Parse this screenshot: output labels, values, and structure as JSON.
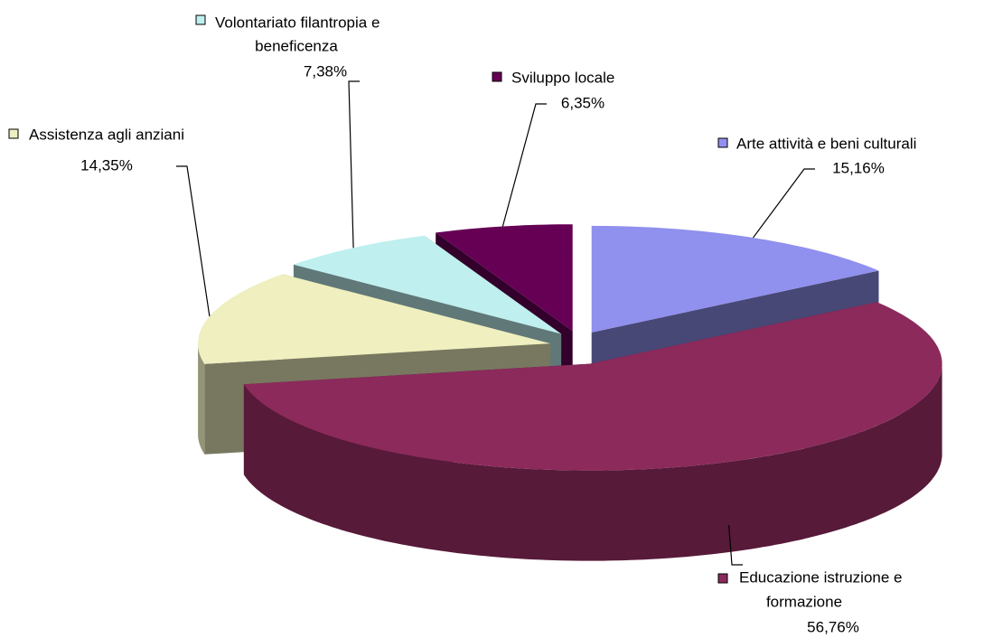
{
  "chart_data": {
    "type": "pie3d",
    "categories": [
      "Arte attività e beni culturali",
      "Educazione istruzione e formazione",
      "Assistenza agli anziani",
      "Volontariato filantropia e beneficenza",
      "Sviluppo locale"
    ],
    "values": [
      15.16,
      56.76,
      14.35,
      7.38,
      6.35
    ],
    "value_labels": [
      "15,16%",
      "56,76%",
      "14,35%",
      "7,38%",
      "6,35%"
    ],
    "colors": [
      "#9090ee",
      "#8c2a5c",
      "#efefbf",
      "#bfefef",
      "#660055"
    ]
  }
}
